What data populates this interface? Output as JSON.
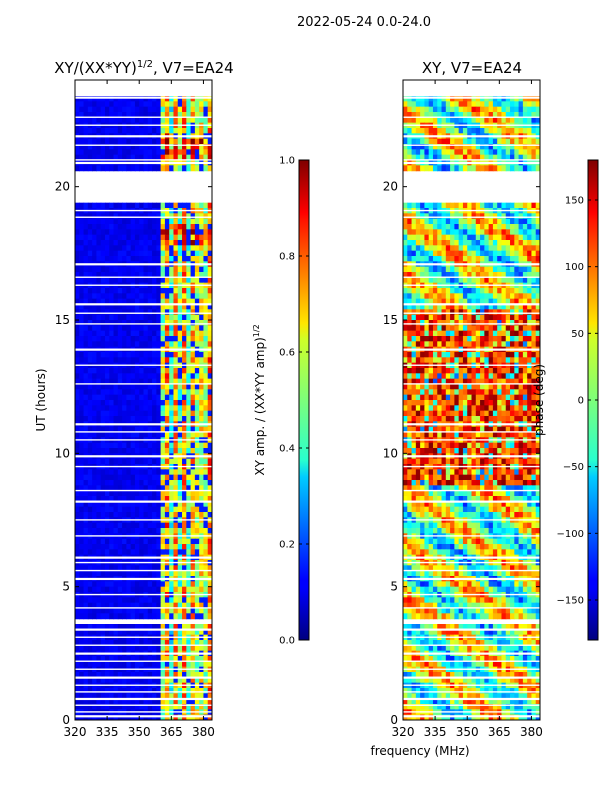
{
  "figure": {
    "suptitle": "2022-05-24 0.0-24.0",
    "xlabel_shared": "frequency (MHz)"
  },
  "chart_data": [
    {
      "type": "heatmap",
      "title": "XY/(XX*YY)^{1/2}, V7=EA24",
      "title_main": "XY/(XX*YY)",
      "title_sup": "1/2",
      "title_tail": ", V7=EA24",
      "xlabel": "",
      "ylabel": "UT (hours)",
      "xlim": [
        320,
        384
      ],
      "ylim": [
        0,
        24
      ],
      "xticks": [
        320,
        335,
        350,
        365,
        380
      ],
      "yticks": [
        0,
        5,
        10,
        15,
        20
      ],
      "colorbar": {
        "label": "XY amp. / (XX*YY amp)^{1/2}",
        "label_main": "XY amp. / (XX*YY amp)",
        "label_sup": "1/2",
        "range": [
          0.0,
          1.0
        ],
        "ticks": [
          0.0,
          0.2,
          0.4,
          0.6,
          0.8,
          1.0
        ],
        "tick_labels": [
          "0.0",
          "0.2",
          "0.4",
          "0.6",
          "0.8",
          "1.0"
        ]
      },
      "notes": "Mostly ~0.1 (dark blue) below 361 MHz; ~0.4-0.8 at 361-384 MHz; strong values (~0.9) near 21-22 UT and 18 UT; blank data gap 19.4-20.6 UT and near 3.5-3.8 UT"
    },
    {
      "type": "heatmap",
      "title": "XY, V7=EA24",
      "xlabel": "frequency (MHz)",
      "ylabel": "",
      "xlim": [
        320,
        384
      ],
      "ylim": [
        0,
        24
      ],
      "xticks": [
        320,
        335,
        350,
        365,
        380
      ],
      "yticks": [
        0,
        5,
        10,
        15,
        20
      ],
      "colorbar": {
        "label": "phase (deg)",
        "range": [
          -180,
          180
        ],
        "ticks": [
          -150,
          -100,
          -50,
          0,
          50,
          100,
          150
        ],
        "tick_labels": [
          "−150",
          "−100",
          "−50",
          "0",
          "50",
          "100",
          "150"
        ]
      },
      "notes": "Phase noisy over full range; predominantly warm (~+120 to +180 deg) between 9 and 15 UT; blank gap 19.4-20.6 UT"
    }
  ]
}
